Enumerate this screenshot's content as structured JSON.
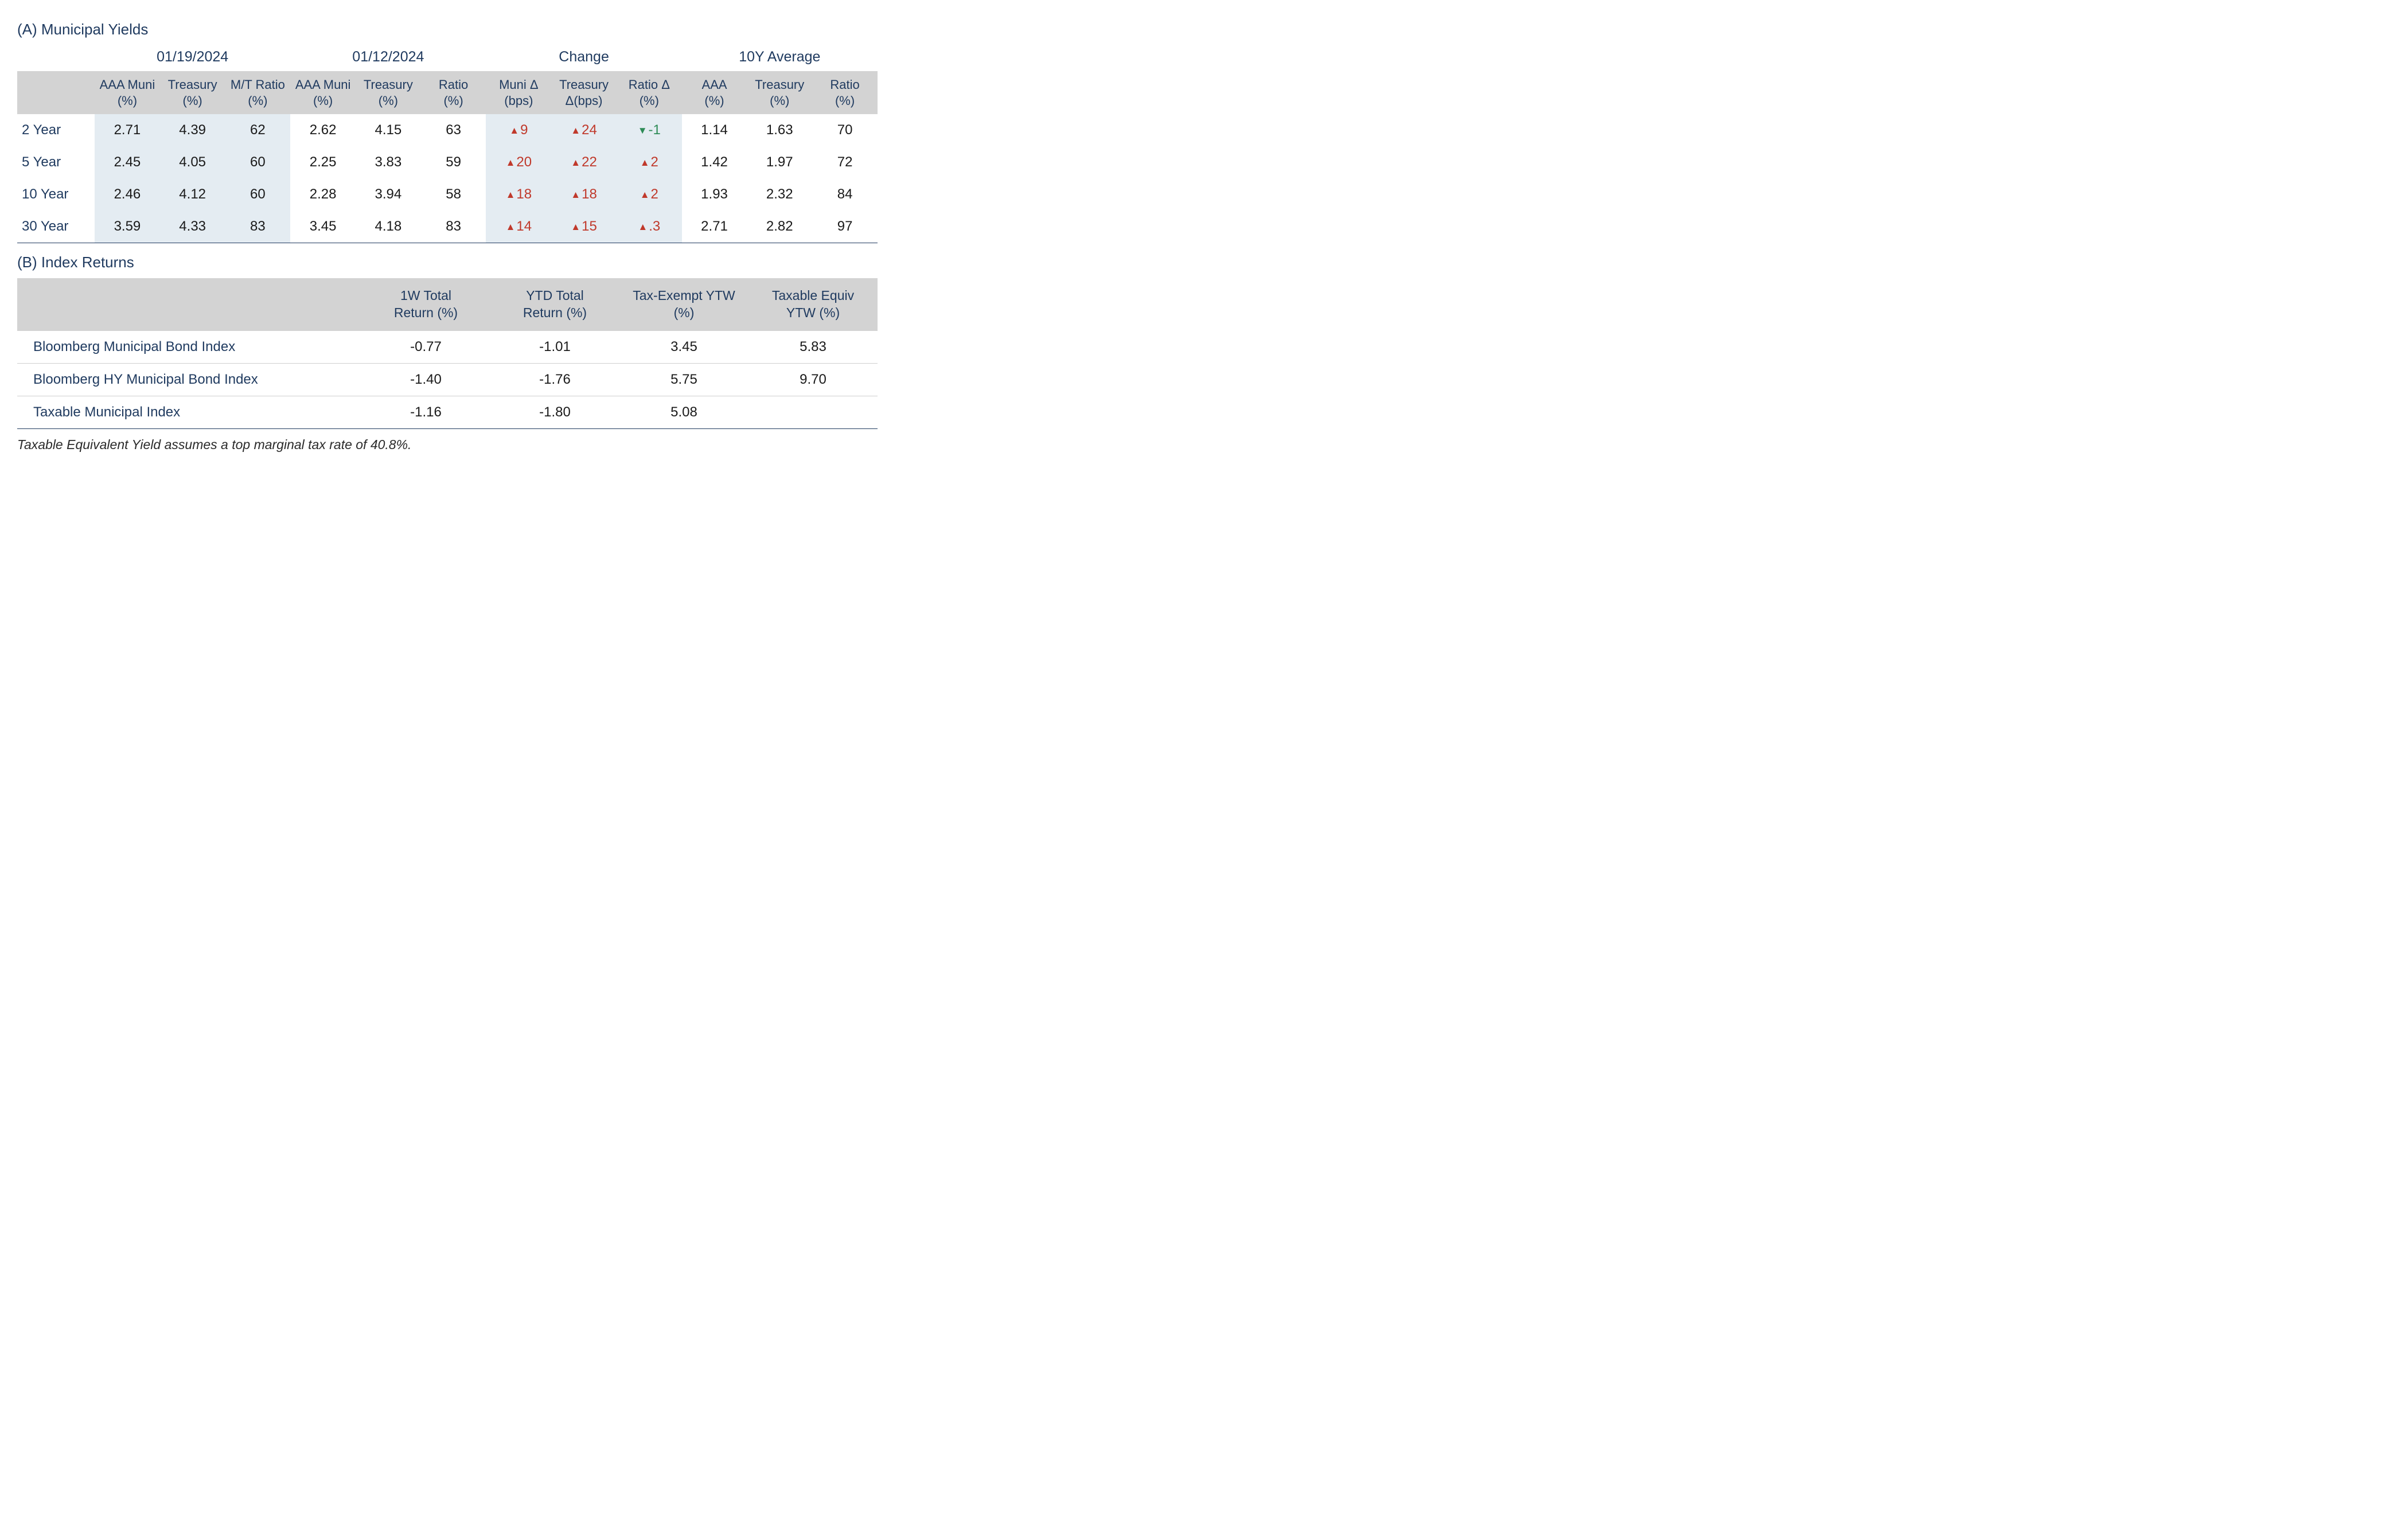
{
  "colors": {
    "navy": "#1f3a5f",
    "header_bg": "#d3d3d3",
    "shade_bg": "#e4ecf2",
    "up": "#c0392b",
    "down": "#2e8b57",
    "text": "#1a1a1a",
    "background": "#ffffff",
    "row_border": "#d0d0d0"
  },
  "typography": {
    "section_title_fontsize": 26,
    "group_header_fontsize": 25,
    "sub_header_fontsize": 22,
    "data_fontsize": 24,
    "footnote_fontsize": 23
  },
  "tableA": {
    "type": "table",
    "title": "(A) Municipal Yields",
    "column_widths_pct": [
      9,
      7.58,
      7.58,
      7.58,
      7.58,
      7.58,
      7.58,
      7.58,
      7.58,
      7.58,
      7.58,
      7.58,
      7.58
    ],
    "shaded_column_indices": [
      1,
      2,
      3,
      7,
      8,
      9
    ],
    "groups": [
      {
        "label": "01/19/2024",
        "span": 3
      },
      {
        "label": "01/12/2024",
        "span": 3
      },
      {
        "label": "Change",
        "span": 3
      },
      {
        "label": "10Y Average",
        "span": 3
      }
    ],
    "subheaders": [
      "AAA Muni (%)",
      "Treasury (%)",
      "M/T Ratio (%)",
      "AAA Muni (%)",
      "Treasury (%)",
      "Ratio (%)",
      "Muni Δ (bps)",
      "Treasury Δ(bps)",
      "Ratio Δ (%)",
      "AAA (%)",
      "Treasury (%)",
      "Ratio (%)"
    ],
    "rows": [
      {
        "label": "2 Year",
        "cells": [
          {
            "v": "2.71"
          },
          {
            "v": "4.39"
          },
          {
            "v": "62"
          },
          {
            "v": "2.62"
          },
          {
            "v": "4.15"
          },
          {
            "v": "63"
          },
          {
            "v": "9",
            "delta": "up"
          },
          {
            "v": "24",
            "delta": "up"
          },
          {
            "v": "-1",
            "delta": "down"
          },
          {
            "v": "1.14"
          },
          {
            "v": "1.63"
          },
          {
            "v": "70"
          }
        ]
      },
      {
        "label": "5 Year",
        "cells": [
          {
            "v": "2.45"
          },
          {
            "v": "4.05"
          },
          {
            "v": "60"
          },
          {
            "v": "2.25"
          },
          {
            "v": "3.83"
          },
          {
            "v": "59"
          },
          {
            "v": "20",
            "delta": "up"
          },
          {
            "v": "22",
            "delta": "up"
          },
          {
            "v": "2",
            "delta": "up"
          },
          {
            "v": "1.42"
          },
          {
            "v": "1.97"
          },
          {
            "v": "72"
          }
        ]
      },
      {
        "label": "10 Year",
        "cells": [
          {
            "v": "2.46"
          },
          {
            "v": "4.12"
          },
          {
            "v": "60"
          },
          {
            "v": "2.28"
          },
          {
            "v": "3.94"
          },
          {
            "v": "58"
          },
          {
            "v": "18",
            "delta": "up"
          },
          {
            "v": "18",
            "delta": "up"
          },
          {
            "v": "2",
            "delta": "up"
          },
          {
            "v": "1.93"
          },
          {
            "v": "2.32"
          },
          {
            "v": "84"
          }
        ]
      },
      {
        "label": "30 Year",
        "cells": [
          {
            "v": "3.59"
          },
          {
            "v": "4.33"
          },
          {
            "v": "83"
          },
          {
            "v": "3.45"
          },
          {
            "v": "4.18"
          },
          {
            "v": "83"
          },
          {
            "v": "14",
            "delta": "up"
          },
          {
            "v": "15",
            "delta": "up"
          },
          {
            "v": ".3",
            "delta": "up"
          },
          {
            "v": "2.71"
          },
          {
            "v": "2.82"
          },
          {
            "v": "97"
          }
        ]
      }
    ]
  },
  "tableB": {
    "type": "table",
    "title": "(B) Index Returns",
    "column_widths_pct": [
      40,
      15,
      15,
      15,
      15
    ],
    "headers": [
      "1W Total Return (%)",
      "YTD Total Return (%)",
      "Tax-Exempt YTW (%)",
      "Taxable Equiv YTW (%)"
    ],
    "rows": [
      {
        "label": "Bloomberg Municipal Bond Index",
        "cells": [
          "-0.77",
          "-1.01",
          "3.45",
          "5.83"
        ]
      },
      {
        "label": "Bloomberg HY Municipal Bond Index",
        "cells": [
          "-1.40",
          "-1.76",
          "5.75",
          "9.70"
        ]
      },
      {
        "label": "Taxable Municipal Index",
        "cells": [
          "-1.16",
          "-1.80",
          "5.08",
          ""
        ]
      }
    ]
  },
  "footnote": "Taxable Equivalent Yield assumes a top marginal tax rate of 40.8%."
}
